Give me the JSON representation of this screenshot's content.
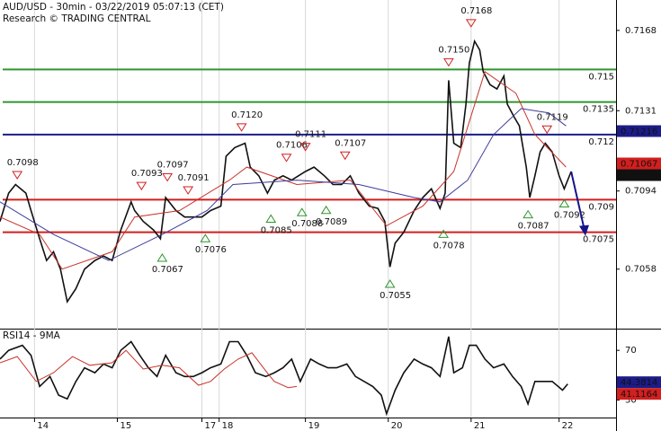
{
  "chart_data": [
    {
      "type": "line",
      "title": "AUD/USD - 30min - 03/22/2019 05:07:13 (CET)",
      "subtitle": "Research © TRADING CENTRAL",
      "xlim": [
        0,
        357
      ],
      "ylim": [
        0.7031,
        0.7182
      ],
      "yticks": [
        0.7168,
        0.7131,
        0.7094,
        0.7058
      ],
      "xticks": [
        {
          "value": 20,
          "label": "14"
        },
        {
          "value": 68,
          "label": "15"
        },
        {
          "value": 117,
          "label": "17"
        },
        {
          "value": 127,
          "label": "18"
        },
        {
          "value": 177,
          "label": "19"
        },
        {
          "value": 225,
          "label": "20"
        },
        {
          "value": 273,
          "label": "21"
        },
        {
          "value": 324,
          "label": "22"
        }
      ],
      "series": [
        {
          "color": "#111111",
          "x": [
            0,
            5,
            9,
            15,
            18,
            23,
            27,
            31,
            35,
            39,
            44,
            49,
            55,
            60,
            65,
            70,
            76,
            78,
            83,
            89,
            93,
            96,
            102,
            107,
            112,
            117,
            122,
            128,
            131,
            136,
            142,
            145,
            150,
            155,
            159,
            164,
            169,
            177,
            182,
            188,
            193,
            198,
            203,
            208,
            214,
            219,
            223,
            226,
            229,
            234,
            240,
            245,
            250,
            255,
            258,
            260,
            263,
            267,
            270,
            272,
            275,
            278,
            280,
            284,
            288,
            292,
            294,
            298,
            301,
            305,
            307,
            310,
            313,
            316,
            320,
            324,
            327,
            331
          ],
          "values": [
            0.708,
            0.7093,
            0.7097,
            0.7093,
            0.7085,
            0.7072,
            0.7062,
            0.7066,
            0.7058,
            0.7043,
            0.7049,
            0.7058,
            0.7062,
            0.7064,
            0.7062,
            0.7076,
            0.7089,
            0.7085,
            0.708,
            0.7076,
            0.7072,
            0.7091,
            0.7085,
            0.7082,
            0.7082,
            0.7082,
            0.7085,
            0.7087,
            0.711,
            0.7114,
            0.7116,
            0.7105,
            0.7101,
            0.7093,
            0.7099,
            0.7101,
            0.7099,
            0.7103,
            0.7105,
            0.7101,
            0.7097,
            0.7097,
            0.7101,
            0.7093,
            0.7087,
            0.7086,
            0.708,
            0.7059,
            0.707,
            0.7075,
            0.7085,
            0.7091,
            0.7095,
            0.7086,
            0.7093,
            0.7145,
            0.7116,
            0.7114,
            0.7134,
            0.7153,
            0.7163,
            0.7159,
            0.7149,
            0.7143,
            0.7141,
            0.7147,
            0.7134,
            0.7128,
            0.7124,
            0.7105,
            0.7091,
            0.7101,
            0.7112,
            0.7116,
            0.7112,
            0.7101,
            0.7095,
            0.7103
          ]
        },
        {
          "color": "#c8322a",
          "x": [
            0,
            23,
            36,
            65,
            78,
            104,
            133,
            143,
            172,
            203,
            224,
            245,
            263,
            281,
            299,
            310,
            328
          ],
          "values": [
            0.7082,
            0.7074,
            0.7058,
            0.7066,
            0.7082,
            0.7085,
            0.7099,
            0.7105,
            0.7097,
            0.7099,
            0.7078,
            0.7087,
            0.7103,
            0.7149,
            0.7139,
            0.712,
            0.7105
          ]
        },
        {
          "color": "#3b3b9c",
          "x": [
            0,
            31,
            63,
            94,
            120,
            135,
            172,
            208,
            240,
            255,
            271,
            286,
            302,
            318,
            328
          ],
          "values": [
            0.7089,
            0.7074,
            0.7062,
            0.7074,
            0.7085,
            0.7097,
            0.7099,
            0.7097,
            0.7091,
            0.7089,
            0.7099,
            0.712,
            0.7132,
            0.713,
            0.7124
          ]
        }
      ],
      "levels": [
        {
          "value": 0.715,
          "color": "#2f962f"
        },
        {
          "value": 0.7135,
          "color": "#2f962f"
        },
        {
          "value": 0.712,
          "color": "#1c1c8a"
        },
        {
          "value": 0.709,
          "color": "#d21f1f"
        },
        {
          "value": 0.7075,
          "color": "#d21f1f"
        }
      ],
      "highs": [
        {
          "x": 10,
          "value": 0.7098,
          "label": "0.7098"
        },
        {
          "x": 82,
          "value": 0.7093,
          "label": "0.7093"
        },
        {
          "x": 97,
          "value": 0.7097,
          "label": "0.7097"
        },
        {
          "x": 109,
          "value": 0.7091,
          "label": "0.7091"
        },
        {
          "x": 140,
          "value": 0.712,
          "label": "0.7120"
        },
        {
          "x": 166,
          "value": 0.7106,
          "label": "0.7106"
        },
        {
          "x": 177,
          "value": 0.7111,
          "label": "0.7111"
        },
        {
          "x": 200,
          "value": 0.7107,
          "label": "0.7107"
        },
        {
          "x": 260,
          "value": 0.715,
          "label": "0.7150"
        },
        {
          "x": 273,
          "value": 0.7168,
          "label": "0.7168"
        },
        {
          "x": 317,
          "value": 0.7119,
          "label": "0.7119"
        }
      ],
      "lows": [
        {
          "x": 94,
          "value": 0.7067,
          "label": "0.7067"
        },
        {
          "x": 119,
          "value": 0.7076,
          "label": "0.7076"
        },
        {
          "x": 157,
          "value": 0.7085,
          "label": "0.7085"
        },
        {
          "x": 175,
          "value": 0.7088,
          "label": "0.7088"
        },
        {
          "x": 189,
          "value": 0.7089,
          "label": "0.7089"
        },
        {
          "x": 226,
          "value": 0.7055,
          "label": "0.7055"
        },
        {
          "x": 257,
          "value": 0.7078,
          "label": "0.7078"
        },
        {
          "x": 306,
          "value": 0.7087,
          "label": "0.7087"
        },
        {
          "x": 327,
          "value": 0.7092,
          "label": "0.7092"
        }
      ],
      "price_tags": [
        {
          "value": 0.71216,
          "color": "#1c1c8a"
        },
        {
          "value": 0.71067,
          "color": "#d21f1f"
        },
        {
          "value": 0.71036,
          "color": "#111111"
        }
      ]
    },
    {
      "type": "line",
      "title": "RSI14 - 9MA",
      "xlim": [
        0,
        357
      ],
      "ylim": [
        16,
        86
      ],
      "yticks": [
        70,
        30
      ],
      "series": [
        {
          "color": "#111111",
          "x": [
            0,
            5,
            13,
            18,
            23,
            29,
            34,
            39,
            44,
            49,
            55,
            60,
            65,
            70,
            76,
            81,
            86,
            91,
            96,
            102,
            107,
            112,
            117,
            122,
            128,
            133,
            138,
            143,
            148,
            154,
            159,
            164,
            169,
            174,
            180,
            185,
            190,
            195,
            201,
            206,
            211,
            216,
            221,
            224,
            229,
            234,
            240,
            245,
            250,
            255,
            260,
            263,
            268,
            272,
            276,
            281,
            286,
            292,
            297,
            302,
            306,
            310,
            315,
            320,
            326,
            329
          ],
          "values": [
            63,
            70,
            74,
            66,
            41,
            49,
            34,
            31,
            45,
            56,
            52,
            59,
            56,
            70,
            77,
            66,
            56,
            49,
            66,
            52,
            49,
            49,
            52,
            56,
            59,
            77,
            77,
            66,
            52,
            49,
            52,
            56,
            63,
            45,
            63,
            59,
            56,
            56,
            59,
            49,
            45,
            41,
            34,
            19,
            38,
            52,
            63,
            59,
            56,
            49,
            81,
            52,
            56,
            74,
            74,
            63,
            56,
            59,
            49,
            41,
            27,
            45,
            45,
            45,
            38,
            43
          ]
        },
        {
          "color": "#c8322a",
          "x": [
            0,
            10,
            21,
            31,
            42,
            52,
            65,
            73,
            83,
            94,
            104,
            115,
            122,
            130,
            138,
            146,
            156,
            159,
            167,
            172
          ],
          "values": [
            60,
            65,
            45,
            52,
            65,
            58,
            60,
            70,
            55,
            58,
            56,
            42,
            45,
            55,
            63,
            68,
            50,
            45,
            40,
            41
          ]
        }
      ],
      "price_tags": [
        {
          "value": 44.3814,
          "color": "#1c1c8a"
        },
        {
          "value": 41.1164,
          "color": "#d21f1f"
        }
      ]
    }
  ]
}
